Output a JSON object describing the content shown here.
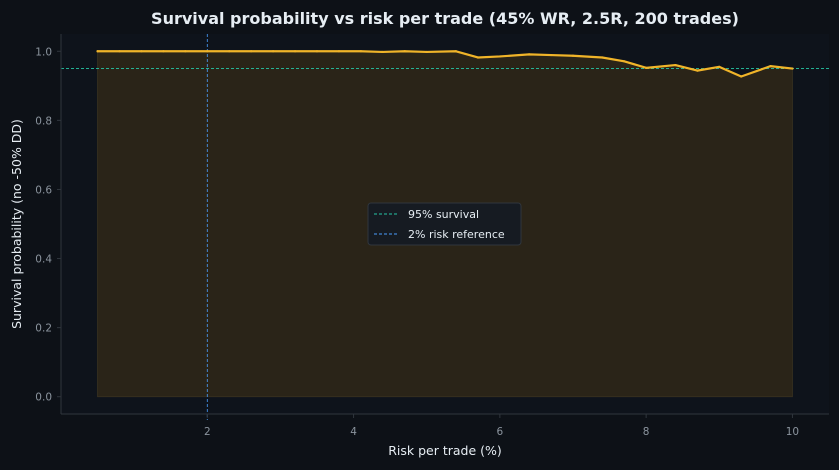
{
  "chart_data": {
    "type": "line",
    "title": "Survival probability vs risk per trade (45% WR, 2.5R, 200 trades)",
    "xlabel": "Risk per trade (%)",
    "ylabel": "Survival probability (no -50% DD)",
    "xlim": [
      0.0,
      10.5
    ],
    "ylim": [
      -0.05,
      1.05
    ],
    "x_ticks": [
      2,
      4,
      6,
      8,
      10
    ],
    "y_ticks": [
      0.0,
      0.2,
      0.4,
      0.6,
      0.8,
      1.0
    ],
    "y_tick_format": 1,
    "grid": false,
    "series": [
      {
        "color": "#f0b429",
        "fill": "#2a2418",
        "x": [
          0.5,
          0.8,
          1.1,
          1.4,
          1.7,
          2.0,
          2.3,
          2.6,
          2.9,
          3.2,
          3.5,
          3.8,
          4.1,
          4.4,
          4.7,
          5.0,
          5.4,
          5.7,
          6.0,
          6.4,
          6.7,
          7.0,
          7.4,
          7.7,
          8.0,
          8.4,
          8.7,
          9.0,
          9.3,
          9.7,
          10.0
        ],
        "y": [
          1.0,
          1.0,
          1.0,
          1.0,
          1.0,
          1.0,
          1.0,
          1.0,
          1.0,
          1.0,
          1.0,
          1.0,
          1.0,
          0.998,
          1.0,
          0.998,
          1.0,
          0.982,
          0.985,
          0.991,
          0.989,
          0.987,
          0.982,
          0.971,
          0.952,
          0.96,
          0.944,
          0.955,
          0.927,
          0.957,
          0.95
        ]
      }
    ],
    "reference_lines": [
      {
        "orientation": "horizontal",
        "value": 0.95,
        "label": "95% survival",
        "color": "#26c6a6"
      },
      {
        "orientation": "vertical",
        "value": 2,
        "label": "2% risk reference",
        "color": "#4a9eff"
      }
    ],
    "legend": {
      "placement": "center",
      "entries": [
        "95% survival",
        "2% risk reference"
      ]
    }
  }
}
